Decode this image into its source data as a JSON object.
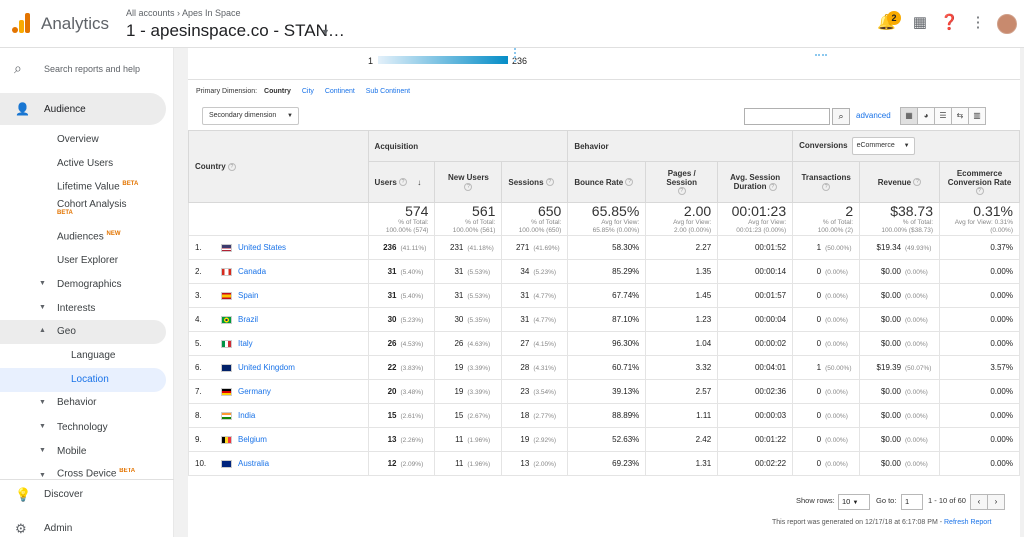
{
  "header": {
    "app_name": "Analytics",
    "breadcrumb": "All accounts › Apes In Space",
    "property": "1 - apesinspace.co - STAN…",
    "notification_count": "2"
  },
  "sidebar": {
    "search_placeholder": "Search reports and help",
    "audience": "Audience",
    "items": {
      "overview": "Overview",
      "active_users": "Active Users",
      "lifetime_value": "Lifetime Value",
      "lifetime_badge": "BETA",
      "cohort": "Cohort Analysis",
      "cohort_badge": "BETA",
      "audiences": "Audiences",
      "audiences_badge": "NEW",
      "user_explorer": "User Explorer",
      "demographics": "Demographics",
      "interests": "Interests",
      "geo": "Geo",
      "language": "Language",
      "location": "Location",
      "behavior": "Behavior",
      "technology": "Technology",
      "mobile": "Mobile",
      "cross_device": "Cross Device",
      "cross_badge": "BETA"
    },
    "discover": "Discover",
    "admin": "Admin"
  },
  "map": {
    "min": "1",
    "max": "236"
  },
  "dimension": {
    "label": "Primary Dimension:",
    "selected": "Country",
    "links": [
      "City",
      "Continent",
      "Sub Continent"
    ]
  },
  "controls": {
    "secondary_dimension": "Secondary dimension",
    "advanced": "advanced"
  },
  "table": {
    "country_header": "Country",
    "groups": {
      "acquisition": "Acquisition",
      "behavior": "Behavior",
      "conversions": "Conversions",
      "ecommerce": "eCommerce"
    },
    "columns": {
      "users": "Users",
      "new_users": "New Users",
      "sessions": "Sessions",
      "bounce": "Bounce Rate",
      "pages": "Pages / Session",
      "duration": "Avg. Session Duration",
      "transactions": "Transactions",
      "revenue": "Revenue",
      "ecr": "Ecommerce Conversion Rate"
    },
    "totals": {
      "users": "574",
      "users_sub1": "% of Total:",
      "users_sub2": "100.00% (574)",
      "new_users": "561",
      "new_users_sub1": "% of Total:",
      "new_users_sub2": "100.00% (561)",
      "sessions": "650",
      "sessions_sub1": "% of Total:",
      "sessions_sub2": "100.00% (650)",
      "bounce": "65.85%",
      "bounce_sub1": "Avg for View:",
      "bounce_sub2": "65.85% (0.00%)",
      "pages": "2.00",
      "pages_sub1": "Avg for View:",
      "pages_sub2": "2.00 (0.00%)",
      "duration": "00:01:23",
      "duration_sub1": "Avg for View:",
      "duration_sub2": "00:01:23 (0.00%)",
      "transactions": "2",
      "transactions_sub1": "% of Total:",
      "transactions_sub2": "100.00% (2)",
      "revenue": "$38.73",
      "revenue_sub1": "% of Total:",
      "revenue_sub2": "100.00% ($38.73)",
      "ecr": "0.31%",
      "ecr_sub1": "Avg for View: 0.31%",
      "ecr_sub2": "(0.00%)"
    },
    "rows": [
      {
        "idx": "1.",
        "country": "United States",
        "flag": "us",
        "users": "236",
        "users_pct": "(41.11%)",
        "new_users": "231",
        "new_pct": "(41.18%)",
        "sessions": "271",
        "sess_pct": "(41.69%)",
        "bounce": "58.30%",
        "pages": "2.27",
        "duration": "00:01:52",
        "tx": "1",
        "tx_pct": "(50.00%)",
        "rev": "$19.34",
        "rev_pct": "(49.93%)",
        "ecr": "0.37%"
      },
      {
        "idx": "2.",
        "country": "Canada",
        "flag": "ca",
        "users": "31",
        "users_pct": "(5.40%)",
        "new_users": "31",
        "new_pct": "(5.53%)",
        "sessions": "34",
        "sess_pct": "(5.23%)",
        "bounce": "85.29%",
        "pages": "1.35",
        "duration": "00:00:14",
        "tx": "0",
        "tx_pct": "(0.00%)",
        "rev": "$0.00",
        "rev_pct": "(0.00%)",
        "ecr": "0.00%"
      },
      {
        "idx": "3.",
        "country": "Spain",
        "flag": "es",
        "users": "31",
        "users_pct": "(5.40%)",
        "new_users": "31",
        "new_pct": "(5.53%)",
        "sessions": "31",
        "sess_pct": "(4.77%)",
        "bounce": "67.74%",
        "pages": "1.45",
        "duration": "00:01:57",
        "tx": "0",
        "tx_pct": "(0.00%)",
        "rev": "$0.00",
        "rev_pct": "(0.00%)",
        "ecr": "0.00%"
      },
      {
        "idx": "4.",
        "country": "Brazil",
        "flag": "br",
        "users": "30",
        "users_pct": "(5.23%)",
        "new_users": "30",
        "new_pct": "(5.35%)",
        "sessions": "31",
        "sess_pct": "(4.77%)",
        "bounce": "87.10%",
        "pages": "1.23",
        "duration": "00:00:04",
        "tx": "0",
        "tx_pct": "(0.00%)",
        "rev": "$0.00",
        "rev_pct": "(0.00%)",
        "ecr": "0.00%"
      },
      {
        "idx": "5.",
        "country": "Italy",
        "flag": "it",
        "users": "26",
        "users_pct": "(4.53%)",
        "new_users": "26",
        "new_pct": "(4.63%)",
        "sessions": "27",
        "sess_pct": "(4.15%)",
        "bounce": "96.30%",
        "pages": "1.04",
        "duration": "00:00:02",
        "tx": "0",
        "tx_pct": "(0.00%)",
        "rev": "$0.00",
        "rev_pct": "(0.00%)",
        "ecr": "0.00%"
      },
      {
        "idx": "6.",
        "country": "United Kingdom",
        "flag": "gb",
        "users": "22",
        "users_pct": "(3.83%)",
        "new_users": "19",
        "new_pct": "(3.39%)",
        "sessions": "28",
        "sess_pct": "(4.31%)",
        "bounce": "60.71%",
        "pages": "3.32",
        "duration": "00:04:01",
        "tx": "1",
        "tx_pct": "(50.00%)",
        "rev": "$19.39",
        "rev_pct": "(50.07%)",
        "ecr": "3.57%"
      },
      {
        "idx": "7.",
        "country": "Germany",
        "flag": "de",
        "users": "20",
        "users_pct": "(3.48%)",
        "new_users": "19",
        "new_pct": "(3.39%)",
        "sessions": "23",
        "sess_pct": "(3.54%)",
        "bounce": "39.13%",
        "pages": "2.57",
        "duration": "00:02:36",
        "tx": "0",
        "tx_pct": "(0.00%)",
        "rev": "$0.00",
        "rev_pct": "(0.00%)",
        "ecr": "0.00%"
      },
      {
        "idx": "8.",
        "country": "India",
        "flag": "in",
        "users": "15",
        "users_pct": "(2.61%)",
        "new_users": "15",
        "new_pct": "(2.67%)",
        "sessions": "18",
        "sess_pct": "(2.77%)",
        "bounce": "88.89%",
        "pages": "1.11",
        "duration": "00:00:03",
        "tx": "0",
        "tx_pct": "(0.00%)",
        "rev": "$0.00",
        "rev_pct": "(0.00%)",
        "ecr": "0.00%"
      },
      {
        "idx": "9.",
        "country": "Belgium",
        "flag": "be",
        "users": "13",
        "users_pct": "(2.26%)",
        "new_users": "11",
        "new_pct": "(1.96%)",
        "sessions": "19",
        "sess_pct": "(2.92%)",
        "bounce": "52.63%",
        "pages": "2.42",
        "duration": "00:01:22",
        "tx": "0",
        "tx_pct": "(0.00%)",
        "rev": "$0.00",
        "rev_pct": "(0.00%)",
        "ecr": "0.00%"
      },
      {
        "idx": "10.",
        "country": "Australia",
        "flag": "au",
        "users": "12",
        "users_pct": "(2.09%)",
        "new_users": "11",
        "new_pct": "(1.96%)",
        "sessions": "13",
        "sess_pct": "(2.00%)",
        "bounce": "69.23%",
        "pages": "1.31",
        "duration": "00:02:22",
        "tx": "0",
        "tx_pct": "(0.00%)",
        "rev": "$0.00",
        "rev_pct": "(0.00%)",
        "ecr": "0.00%"
      }
    ]
  },
  "pagination": {
    "show_rows_label": "Show rows:",
    "show_rows_value": "10",
    "goto_label": "Go to:",
    "goto_value": "1",
    "range": "1 - 10 of 60"
  },
  "footer": {
    "generated": "This report was generated on 12/17/18 at 6:17:08 PM - ",
    "refresh": "Refresh Report"
  },
  "colors": {
    "accent": "#1a73e8",
    "brand_orange": "#e37400",
    "brand_yellow": "#f9ab00"
  }
}
